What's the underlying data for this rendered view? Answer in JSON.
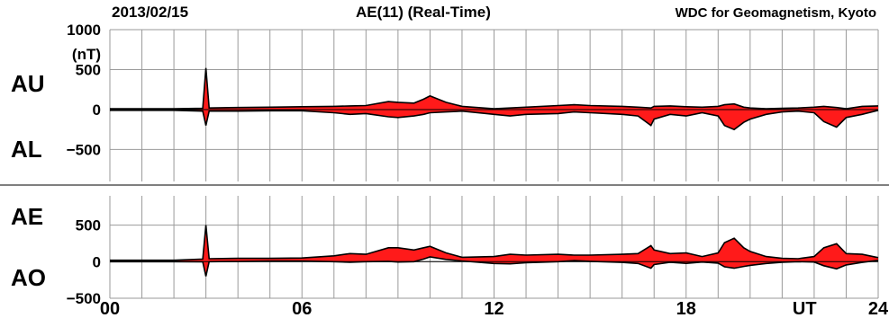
{
  "header": {
    "date": "2013/02/15",
    "title": "AE(11) (Real-Time)",
    "source": "WDC for Geomagnetism, Kyoto"
  },
  "colors": {
    "fill": "#ff1a1a",
    "line": "#000000",
    "grid": "#9a9a9a"
  },
  "chart_data": [
    {
      "type": "area",
      "panel": "upper",
      "labels_left": [
        "AU",
        "AL"
      ],
      "ylabel": "(nT)",
      "ylim": [
        -900,
        1000
      ],
      "yticks": [
        1000,
        500,
        0,
        -500
      ],
      "ytick_labels": [
        "1000",
        "500",
        "0",
        "−500"
      ],
      "x": [
        0,
        1,
        2,
        2.9,
        3.0,
        3.1,
        4,
        5,
        6,
        7,
        7.5,
        8,
        8.7,
        9,
        9.5,
        9.8,
        10,
        10.5,
        11,
        12,
        12.5,
        13,
        14,
        14.5,
        15,
        16,
        16.5,
        16.9,
        17,
        17.5,
        18,
        18.5,
        19,
        19.2,
        19.5,
        19.8,
        20,
        20.5,
        21,
        21.5,
        22,
        22.3,
        22.7,
        23,
        23.5,
        24
      ],
      "series": [
        {
          "values": [
            10,
            10,
            10,
            15,
            520,
            20,
            25,
            30,
            35,
            40,
            45,
            50,
            100,
            90,
            80,
            130,
            170,
            90,
            40,
            10,
            20,
            30,
            50,
            60,
            50,
            40,
            30,
            20,
            40,
            45,
            35,
            30,
            40,
            60,
            70,
            30,
            20,
            10,
            15,
            20,
            30,
            40,
            25,
            10,
            40,
            45
          ]
        },
        {
          "values": [
            -10,
            -10,
            -10,
            -20,
            -200,
            -20,
            -20,
            -15,
            -15,
            -40,
            -60,
            -50,
            -90,
            -100,
            -80,
            -60,
            -40,
            -30,
            -20,
            -60,
            -80,
            -60,
            -50,
            -30,
            -40,
            -60,
            -80,
            -200,
            -120,
            -60,
            -80,
            -40,
            -80,
            -200,
            -250,
            -160,
            -120,
            -60,
            -30,
            -20,
            -40,
            -150,
            -220,
            -100,
            -60,
            -10
          ]
        }
      ]
    },
    {
      "type": "area",
      "panel": "lower",
      "labels_left": [
        "AE",
        "AO"
      ],
      "ylim": [
        -500,
        900
      ],
      "yticks": [
        500,
        0,
        -500
      ],
      "ytick_labels": [
        "500",
        "0",
        "−500"
      ],
      "x": [
        0,
        1,
        2,
        2.9,
        3.0,
        3.1,
        4,
        5,
        6,
        7,
        7.5,
        8,
        8.7,
        9,
        9.5,
        9.8,
        10,
        10.5,
        11,
        12,
        12.5,
        13,
        14,
        14.5,
        15,
        16,
        16.5,
        16.9,
        17,
        17.5,
        18,
        18.5,
        19,
        19.2,
        19.5,
        19.8,
        20,
        20.5,
        21,
        21.5,
        22,
        22.3,
        22.7,
        23,
        23.5,
        24
      ],
      "series": [
        {
          "values": [
            20,
            20,
            20,
            35,
            500,
            40,
            45,
            45,
            50,
            80,
            110,
            100,
            190,
            190,
            160,
            190,
            210,
            120,
            60,
            70,
            100,
            90,
            100,
            90,
            90,
            100,
            110,
            220,
            160,
            110,
            120,
            70,
            120,
            260,
            320,
            190,
            140,
            70,
            45,
            40,
            70,
            190,
            245,
            110,
            100,
            55
          ]
        },
        {
          "values": [
            0,
            0,
            0,
            -3,
            -200,
            0,
            3,
            8,
            10,
            0,
            -8,
            0,
            5,
            -5,
            0,
            35,
            65,
            30,
            10,
            -25,
            -30,
            -15,
            0,
            15,
            5,
            -10,
            -25,
            -90,
            -40,
            -8,
            -23,
            -5,
            -20,
            -70,
            -90,
            -65,
            -50,
            -25,
            -8,
            0,
            -5,
            -55,
            -98,
            -45,
            -10,
            18
          ]
        }
      ]
    }
  ],
  "x_axis": {
    "xlim": [
      0,
      24
    ],
    "tick_labels": [
      {
        "x": 0,
        "label": "00"
      },
      {
        "x": 6,
        "label": "06"
      },
      {
        "x": 12,
        "label": "12"
      },
      {
        "x": 18,
        "label": "18"
      },
      {
        "x": 24,
        "label": "24"
      }
    ],
    "unit_label": "UT",
    "grid": true
  }
}
